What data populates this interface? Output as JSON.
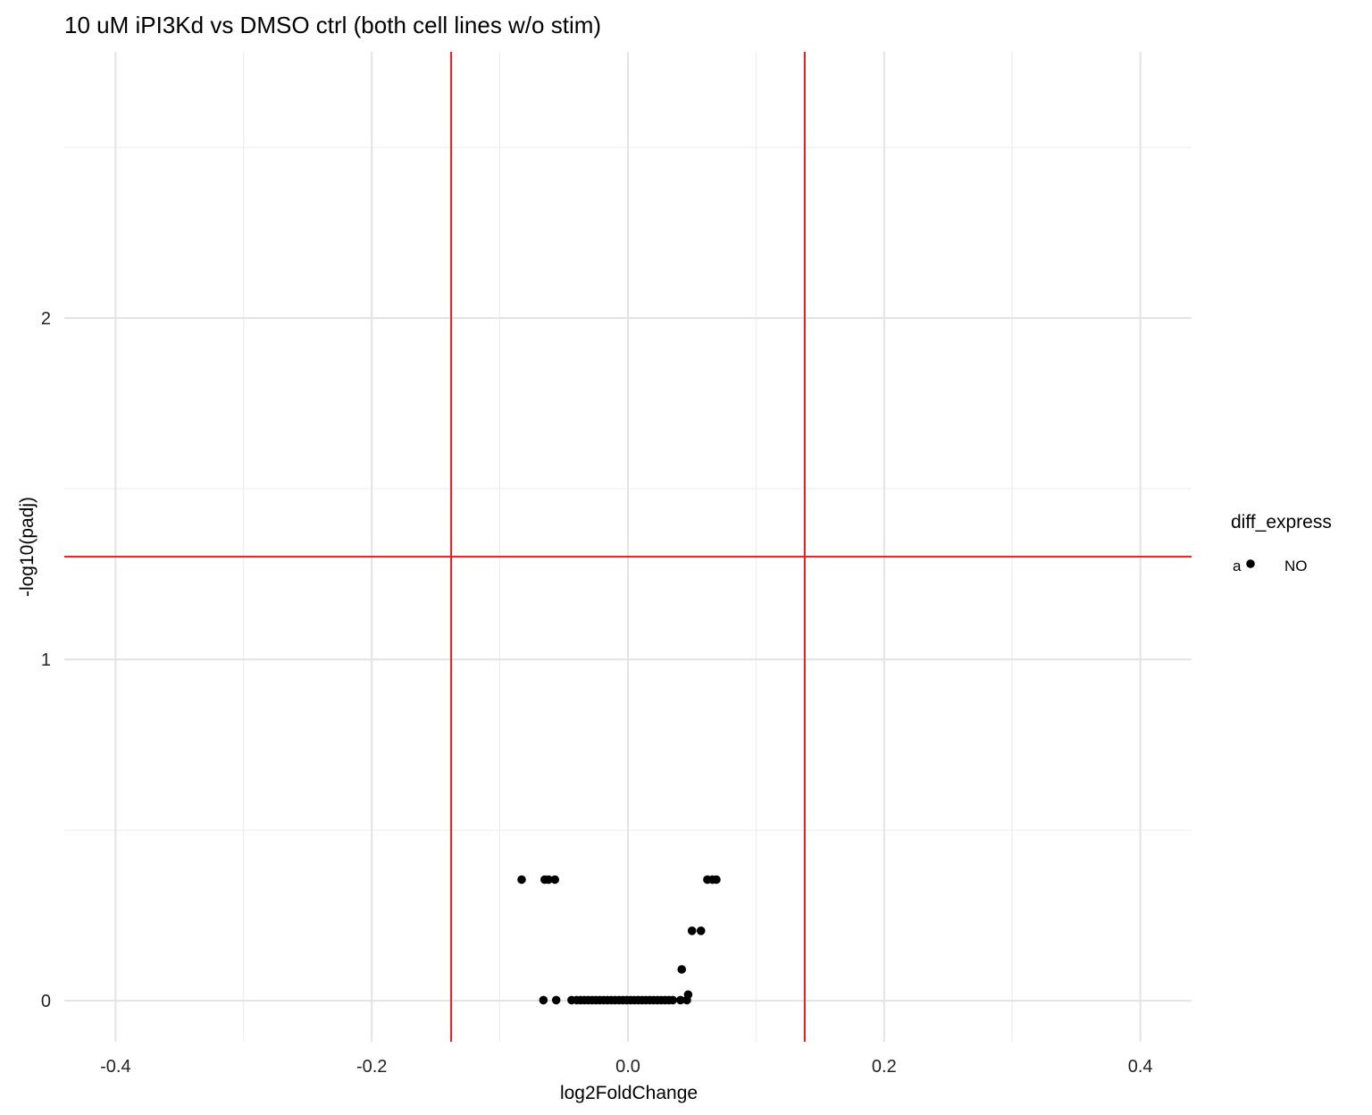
{
  "chart_data": {
    "type": "scatter",
    "title": "10 uM iPI3Kd vs DMSO ctrl (both cell lines w/o stim)",
    "xlabel": "log2FoldChange",
    "ylabel": "-log10(padj)",
    "xlim": [
      -0.44,
      0.44
    ],
    "ylim": [
      -0.12,
      2.78
    ],
    "x_ticks": [
      -0.4,
      -0.2,
      0.0,
      0.2,
      0.4
    ],
    "x_tick_labels": [
      "-0.4",
      "-0.2",
      "0.0",
      "0.2",
      "0.4"
    ],
    "y_ticks": [
      0,
      1,
      2
    ],
    "y_tick_labels": [
      "0",
      "1",
      "2"
    ],
    "grid": true,
    "reference_lines": {
      "vertical_x": [
        -0.138,
        0.138
      ],
      "horizontal_y": [
        1.301
      ],
      "color": "#e41a1c"
    },
    "legend": {
      "title": "diff_express",
      "position": "right",
      "key_glyph_letter": "a",
      "entries": [
        {
          "label": "NO",
          "color": "#000000"
        }
      ]
    },
    "series": [
      {
        "name": "NO",
        "color": "#000000",
        "points": [
          [
            -0.083,
            0.355
          ],
          [
            -0.065,
            0.355
          ],
          [
            -0.062,
            0.355
          ],
          [
            -0.057,
            0.355
          ],
          [
            0.062,
            0.355
          ],
          [
            0.066,
            0.355
          ],
          [
            0.069,
            0.355
          ],
          [
            0.05,
            0.205
          ],
          [
            0.057,
            0.205
          ],
          [
            0.042,
            0.092
          ],
          [
            0.047,
            0.018
          ],
          [
            -0.066,
            0.002
          ],
          [
            -0.056,
            0.002
          ],
          [
            -0.044,
            0.002
          ],
          [
            -0.04,
            0.002
          ],
          [
            -0.037,
            0.002
          ],
          [
            -0.034,
            0.002
          ],
          [
            -0.031,
            0.002
          ],
          [
            -0.028,
            0.002
          ],
          [
            -0.025,
            0.002
          ],
          [
            -0.022,
            0.002
          ],
          [
            -0.019,
            0.002
          ],
          [
            -0.016,
            0.002
          ],
          [
            -0.013,
            0.002
          ],
          [
            -0.01,
            0.002
          ],
          [
            -0.007,
            0.002
          ],
          [
            -0.004,
            0.002
          ],
          [
            -0.001,
            0.002
          ],
          [
            0.002,
            0.002
          ],
          [
            0.005,
            0.002
          ],
          [
            0.008,
            0.002
          ],
          [
            0.011,
            0.002
          ],
          [
            0.014,
            0.002
          ],
          [
            0.017,
            0.002
          ],
          [
            0.02,
            0.002
          ],
          [
            0.023,
            0.002
          ],
          [
            0.026,
            0.002
          ],
          [
            0.029,
            0.002
          ],
          [
            0.032,
            0.002
          ],
          [
            0.035,
            0.002
          ],
          [
            0.041,
            0.002
          ],
          [
            0.046,
            0.002
          ]
        ]
      }
    ]
  }
}
